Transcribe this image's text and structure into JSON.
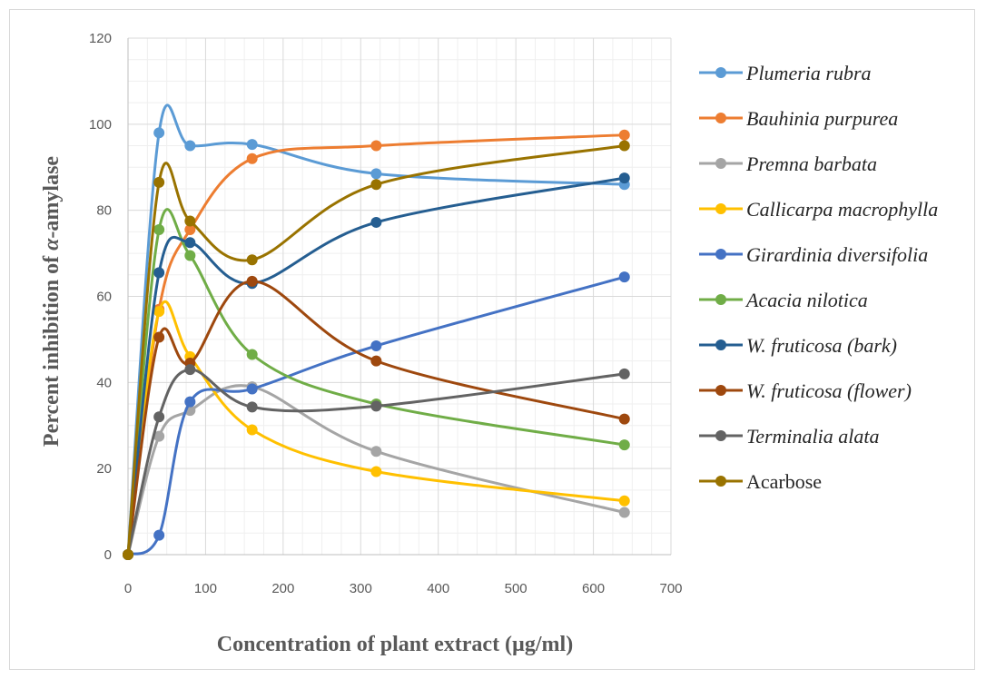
{
  "chart_data": {
    "type": "line",
    "title": "",
    "xlabel": "Concentration of plant extract (µg/ml)",
    "ylabel_prefix": "Percent inhibition of ",
    "ylabel_symbol": "α",
    "ylabel_suffix": "-amylase",
    "xlim": [
      0,
      700
    ],
    "ylim": [
      0,
      120
    ],
    "x_ticks": [
      0,
      100,
      200,
      300,
      400,
      500,
      600,
      700
    ],
    "y_ticks": [
      0,
      20,
      40,
      60,
      80,
      100,
      120
    ],
    "grid": true,
    "legend_position": "right",
    "x": [
      0,
      40,
      80,
      160,
      320,
      640
    ],
    "series": [
      {
        "name": "Plumeria rubra",
        "color": "#5b9bd5",
        "italic": true,
        "values": [
          0,
          98,
          95,
          95.3,
          88.5,
          86
        ]
      },
      {
        "name": "Bauhinia purpurea",
        "color": "#ed7d31",
        "italic": true,
        "values": [
          0,
          57,
          75.5,
          92,
          95,
          97.5
        ]
      },
      {
        "name": "Premna barbata",
        "color": "#a5a5a5",
        "italic": true,
        "values": [
          0,
          27.5,
          33.5,
          39,
          24,
          9.8
        ]
      },
      {
        "name": "Callicarpa macrophylla",
        "color": "#ffc000",
        "italic": true,
        "values": [
          0,
          56.5,
          46,
          29,
          19.3,
          12.5
        ]
      },
      {
        "name": "Girardinia diversifolia",
        "color": "#4472c4",
        "italic": true,
        "values": [
          0,
          4.5,
          35.5,
          38.5,
          48.5,
          64.5
        ]
      },
      {
        "name": "Acacia nilotica",
        "color": "#70ad47",
        "italic": true,
        "values": [
          0,
          75.5,
          69.5,
          46.5,
          35,
          25.5
        ]
      },
      {
        "name": "W. fruticosa (bark)",
        "color": "#255e91",
        "italic": true,
        "values": [
          0,
          65.5,
          72.5,
          63,
          77.2,
          87.5
        ]
      },
      {
        "name": "W. fruticosa (flower)",
        "color": "#9e480e",
        "italic": true,
        "values": [
          0,
          50.5,
          44.5,
          63.5,
          45,
          31.5
        ]
      },
      {
        "name": "Terminalia alata",
        "color": "#636363",
        "italic": true,
        "values": [
          0,
          32,
          43,
          34.3,
          34.5,
          42
        ]
      },
      {
        "name": "Acarbose",
        "color": "#997300",
        "italic": false,
        "values": [
          0,
          86.5,
          77.5,
          68.5,
          86,
          95
        ]
      }
    ]
  }
}
